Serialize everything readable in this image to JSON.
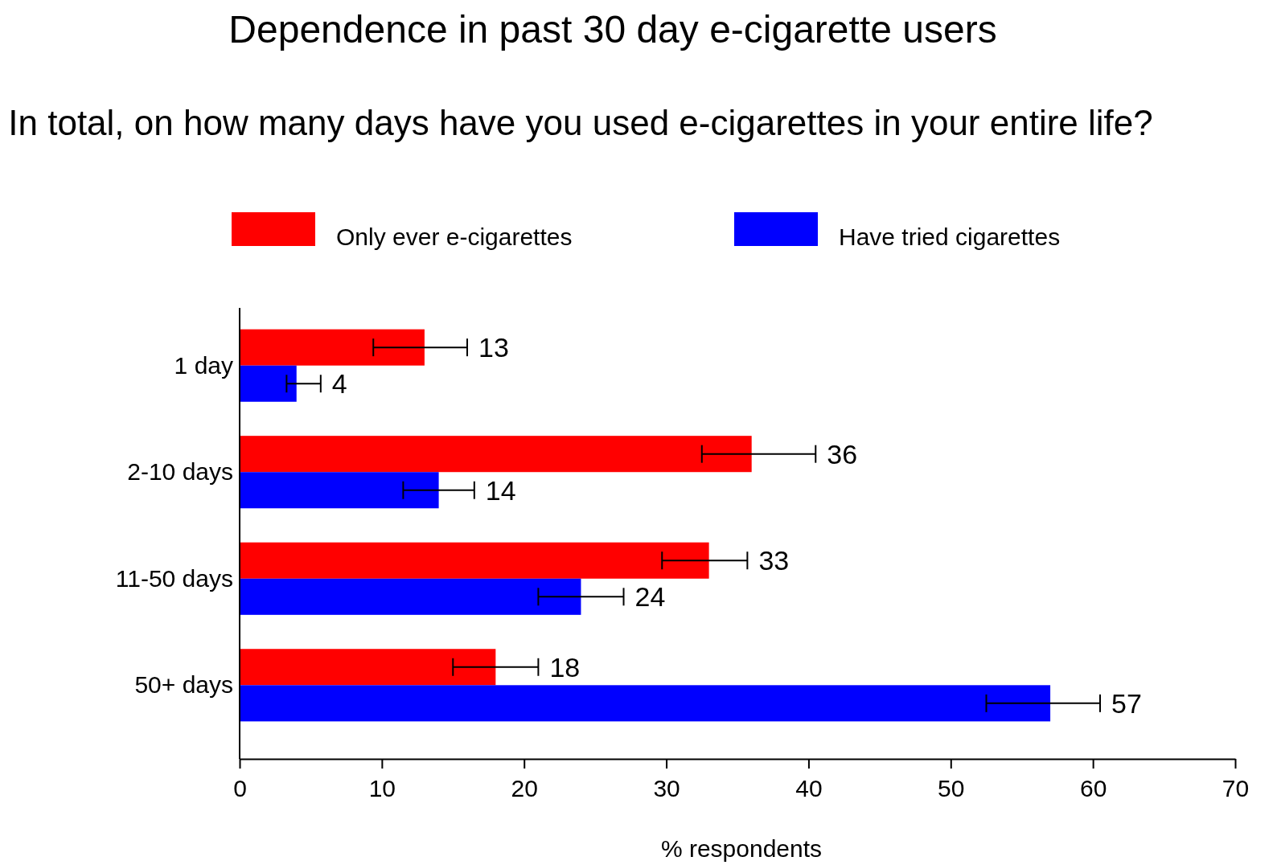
{
  "chart_data": {
    "type": "bar",
    "orientation": "horizontal",
    "title": "Dependence in past 30 day e-cigarette users",
    "subtitle": "In total, on how many days have you used e-cigarettes in your entire life?",
    "xlabel": "% respondents",
    "categories": [
      "1 day",
      "2-10 days",
      "11-50 days",
      "50+ days"
    ],
    "series": [
      {
        "name": "Only ever e-cigarettes",
        "color": "#ff0000",
        "values": [
          13,
          36,
          33,
          18
        ],
        "errors": [
          [
            9.4,
            16
          ],
          [
            32.5,
            40.5
          ],
          [
            29.7,
            35.7
          ],
          [
            15,
            21
          ]
        ]
      },
      {
        "name": "Have tried cigarettes",
        "color": "#0000ff",
        "values": [
          4,
          14,
          24,
          57
        ],
        "errors": [
          [
            3.3,
            5.7
          ],
          [
            11.5,
            16.5
          ],
          [
            21,
            27
          ],
          [
            52.5,
            60.5
          ]
        ]
      }
    ],
    "xlim": [
      0,
      70
    ],
    "xticks": [
      0,
      10,
      20,
      30,
      40,
      50,
      60,
      70
    ],
    "data_labels": true,
    "legend": "top",
    "grid": false
  }
}
